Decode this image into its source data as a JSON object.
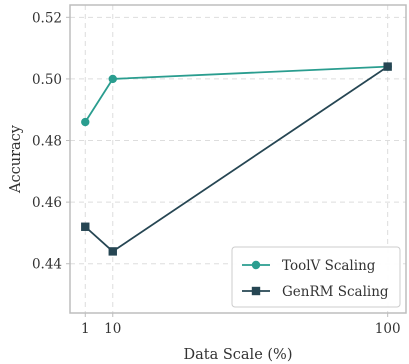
{
  "chart_data": {
    "type": "line",
    "x": [
      1,
      10,
      100
    ],
    "xlabel": "Data Scale (%)",
    "ylabel": "Accuracy",
    "xticks": [
      "1",
      "10",
      "100"
    ],
    "yticks": [
      "0.44",
      "0.46",
      "0.48",
      "0.50",
      "0.52"
    ],
    "ylim": [
      0.424,
      0.524
    ],
    "xlim": [
      -4,
      106
    ],
    "grid": true,
    "legend_position": "lower-right",
    "series": [
      {
        "name": "ToolV Scaling",
        "values": [
          0.486,
          0.5,
          0.504
        ],
        "color": "#2a9d8f",
        "marker": "circle"
      },
      {
        "name": "GenRM Scaling",
        "values": [
          0.452,
          0.444,
          0.504
        ],
        "color": "#264653",
        "marker": "square"
      }
    ]
  }
}
